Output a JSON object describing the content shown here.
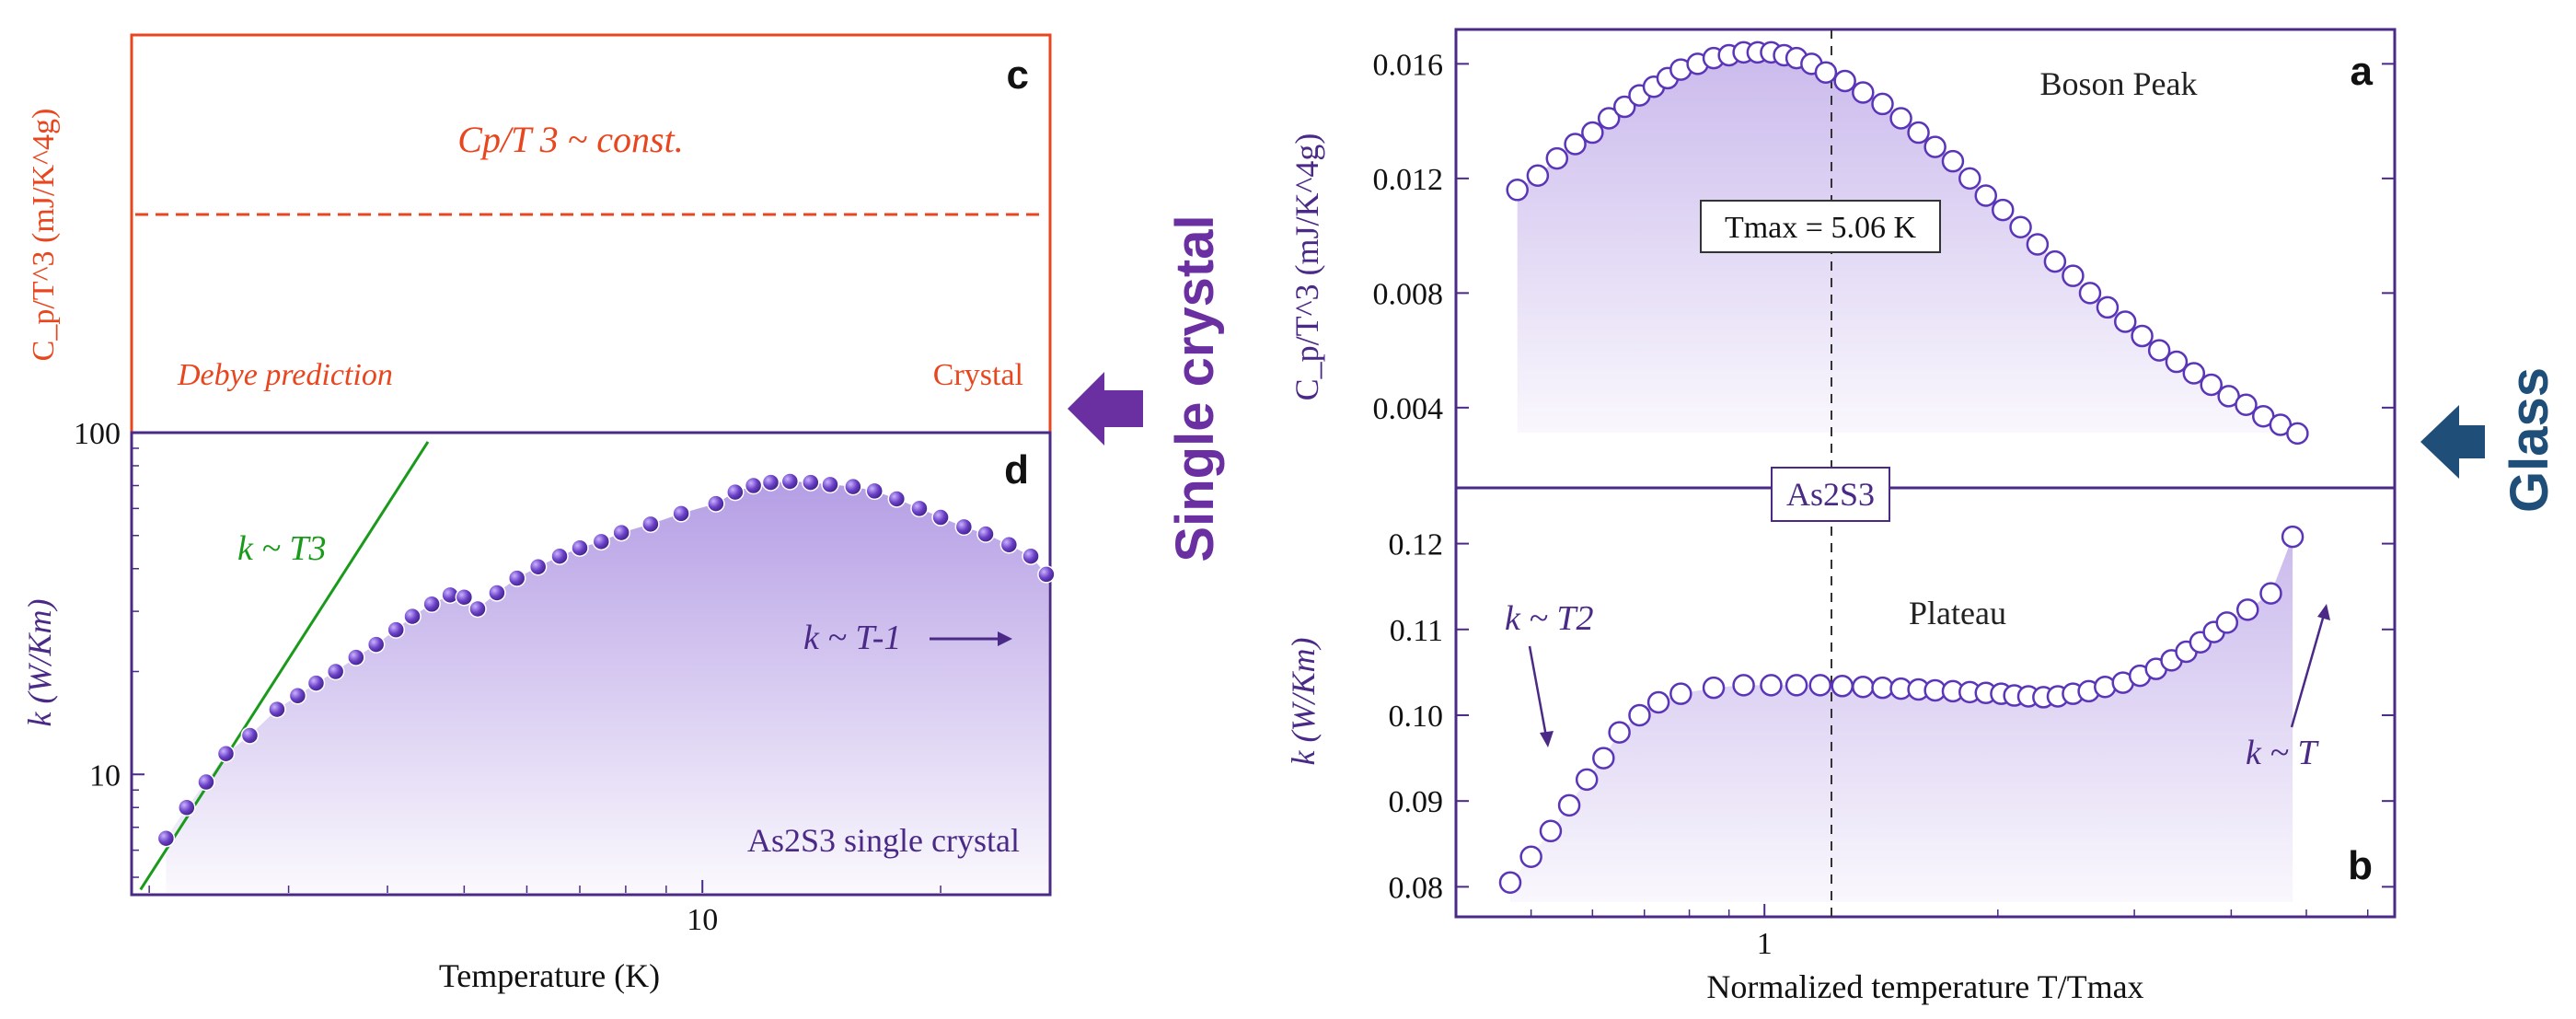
{
  "colors": {
    "red": "#e8461f",
    "purple": "#4a2a86",
    "purple_marker": "#6a3fc6",
    "green": "#1a9a1a",
    "glass_blue": "#1f4e79",
    "fill_purple": "#b9a3e6"
  },
  "side_labels": {
    "single_crystal": "Single crystal",
    "glass": "Glass"
  },
  "chart_data": [
    {
      "id": "c",
      "type": "line",
      "panel_letter": "c",
      "ylabel": "C_p/T^3 (mJ/K^4g)",
      "annotations": {
        "formula": "Cp/T 3 ~ const.",
        "left": "Debye prediction",
        "right": "Crystal"
      },
      "series": [
        {
          "style": "dashed",
          "x": [
            1.9,
            27.5
          ],
          "y": [
            0.5,
            0.5
          ]
        }
      ],
      "x_scale": "log",
      "xlim": [
        1.9,
        27.5
      ]
    },
    {
      "id": "d",
      "type": "scatter",
      "panel_letter": "d",
      "xlabel": "Temperature (K)",
      "ylabel": "k (W/Km)",
      "x_scale": "log",
      "y_scale": "log",
      "xlim": [
        1.9,
        27.5
      ],
      "ylim": [
        4.5,
        100
      ],
      "xticks": [
        10
      ],
      "xtick_labels": [
        "10"
      ],
      "yticks": [
        10,
        100
      ],
      "ytick_labels": [
        "10",
        "100"
      ],
      "annotations": {
        "k_t3": "k ~ T3",
        "k_t_minus1": "k ~ T-1",
        "sample": "As2S3 single crystal"
      },
      "fit_line": {
        "label": "k ~ T3",
        "x": [
          1.95,
          4.5
        ],
        "y": [
          4.6,
          94
        ]
      },
      "series": [
        {
          "marker": "filled-circle",
          "x": [
            2.1,
            2.23,
            2.36,
            2.5,
            2.68,
            2.9,
            3.08,
            3.25,
            3.44,
            3.65,
            3.87,
            4.1,
            4.3,
            4.55,
            4.8,
            5.0,
            5.2,
            5.5,
            5.83,
            6.2,
            6.6,
            7.0,
            7.45,
            7.9,
            8.6,
            9.4,
            10.4,
            11.0,
            11.6,
            12.2,
            12.9,
            13.7,
            14.5,
            15.5,
            16.5,
            17.6,
            18.8,
            20.0,
            21.4,
            22.8,
            24.4,
            26.0,
            27.2
          ],
          "y": [
            6.5,
            8.0,
            9.5,
            11.5,
            13.0,
            15.5,
            17.0,
            18.5,
            20.0,
            22.0,
            24.0,
            26.5,
            29.0,
            31.5,
            33.5,
            33.0,
            30.5,
            34.0,
            37.5,
            40.5,
            43.5,
            46.0,
            48.0,
            51.0,
            54.0,
            58.0,
            62.0,
            67.0,
            70.0,
            71.5,
            72.0,
            71.5,
            70.5,
            69.5,
            67.5,
            64.0,
            60.0,
            56.5,
            53.0,
            50.5,
            47.0,
            43.5,
            38.5
          ]
        }
      ]
    },
    {
      "id": "a",
      "type": "scatter",
      "panel_letter": "a",
      "ylabel": "C_p/T^3 (mJ/K^4g)",
      "x_scale": "log",
      "xlim": [
        0.4,
        6.5
      ],
      "ylim": [
        0.0012,
        0.0172
      ],
      "yticks": [
        0.004,
        0.008,
        0.012,
        0.016
      ],
      "ytick_labels": [
        "0.004",
        "0.008",
        "0.012",
        "0.016"
      ],
      "annotations": {
        "peak": "Boson Peak",
        "tmax_box": "Tmax = 5.06 K"
      },
      "series": [
        {
          "marker": "open-circle",
          "x": [
            0.48,
            0.51,
            0.54,
            0.57,
            0.6,
            0.63,
            0.66,
            0.69,
            0.72,
            0.75,
            0.78,
            0.82,
            0.86,
            0.9,
            0.94,
            0.98,
            1.02,
            1.06,
            1.1,
            1.15,
            1.2,
            1.27,
            1.34,
            1.42,
            1.5,
            1.58,
            1.66,
            1.75,
            1.84,
            1.93,
            2.03,
            2.14,
            2.25,
            2.37,
            2.5,
            2.63,
            2.77,
            2.92,
            3.07,
            3.23,
            3.4,
            3.58,
            3.77,
            3.97,
            4.18,
            4.4,
            4.63,
            4.87
          ],
          "y": [
            0.0116,
            0.0121,
            0.0127,
            0.0132,
            0.0136,
            0.0141,
            0.0145,
            0.0149,
            0.0152,
            0.0155,
            0.0158,
            0.016,
            0.0162,
            0.0163,
            0.0164,
            0.0164,
            0.0164,
            0.0163,
            0.0162,
            0.016,
            0.0157,
            0.0154,
            0.015,
            0.0146,
            0.0141,
            0.0136,
            0.0131,
            0.0126,
            0.012,
            0.0114,
            0.0109,
            0.0103,
            0.0097,
            0.0091,
            0.0086,
            0.008,
            0.0075,
            0.007,
            0.0065,
            0.006,
            0.0056,
            0.0052,
            0.0048,
            0.0044,
            0.0041,
            0.0037,
            0.0034,
            0.0031
          ]
        }
      ]
    },
    {
      "id": "b",
      "type": "scatter",
      "panel_letter": "b",
      "xlabel": "Normalized temperature T/Tmax",
      "ylabel": "k (W/Km)",
      "x_scale": "log",
      "xlim": [
        0.4,
        6.5
      ],
      "ylim": [
        0.0765,
        0.1265
      ],
      "xticks": [
        1
      ],
      "xtick_labels": [
        "1"
      ],
      "yticks": [
        0.08,
        0.09,
        0.1,
        0.11,
        0.12
      ],
      "ytick_labels": [
        "0.08",
        "0.09",
        "0.10",
        "0.11",
        "0.12"
      ],
      "annotations": {
        "center_box": "As2S3",
        "plateau": "Plateau",
        "k_t2": "k ~ T2",
        "k_t": "k ~ T"
      },
      "series": [
        {
          "marker": "open-circle",
          "x": [
            0.47,
            0.5,
            0.53,
            0.56,
            0.59,
            0.62,
            0.65,
            0.69,
            0.73,
            0.78,
            0.86,
            0.94,
            1.02,
            1.1,
            1.18,
            1.26,
            1.34,
            1.42,
            1.5,
            1.58,
            1.66,
            1.75,
            1.84,
            1.93,
            2.02,
            2.1,
            2.19,
            2.29,
            2.39,
            2.5,
            2.62,
            2.75,
            2.9,
            3.05,
            3.2,
            3.35,
            3.5,
            3.65,
            3.8,
            3.95,
            4.2,
            4.5,
            4.8
          ],
          "y": [
            0.0805,
            0.0835,
            0.0865,
            0.0895,
            0.0925,
            0.095,
            0.098,
            0.1,
            0.1015,
            0.1025,
            0.1032,
            0.1035,
            0.1035,
            0.1035,
            0.1035,
            0.1034,
            0.1033,
            0.1032,
            0.1031,
            0.103,
            0.1029,
            0.1028,
            0.1027,
            0.1026,
            0.1025,
            0.1023,
            0.1022,
            0.1021,
            0.1022,
            0.1025,
            0.1028,
            0.1033,
            0.1038,
            0.1046,
            0.1054,
            0.1064,
            0.1074,
            0.1085,
            0.1097,
            0.1108,
            0.1123,
            0.1142,
            0.1208
          ]
        }
      ]
    }
  ]
}
